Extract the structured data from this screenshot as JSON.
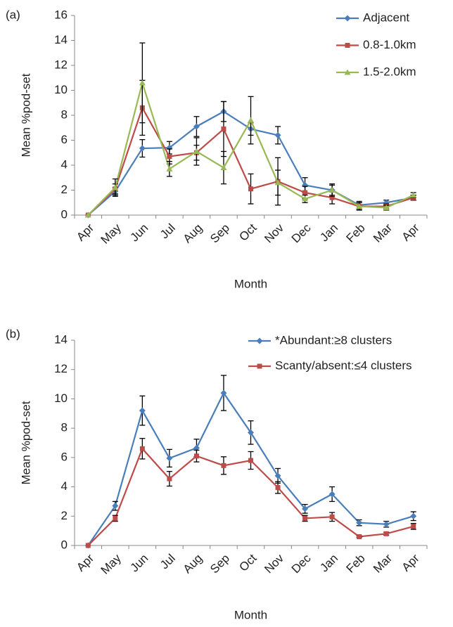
{
  "chart_data": [
    {
      "type": "line",
      "panel_label": "(a)",
      "y_label": "Mean %pod-set",
      "x_label": "Month",
      "categories": [
        "Apr",
        "May",
        "Jun",
        "Jul",
        "Aug",
        "Sep",
        "Oct",
        "Nov",
        "Dec",
        "Jan",
        "Feb",
        "Mar",
        "Apr"
      ],
      "ylim": [
        0,
        16
      ],
      "yticks": [
        0,
        2,
        4,
        6,
        8,
        10,
        12,
        14,
        16
      ],
      "series": [
        {
          "name": "Adjacent",
          "color": "#4a7ebb",
          "marker": "diamond",
          "values": [
            0,
            1.9,
            5.35,
            5.4,
            7.1,
            8.3,
            6.9,
            6.4,
            2.4,
            2.0,
            0.8,
            1.0,
            1.4
          ],
          "errors": [
            0,
            0.3,
            0.7,
            0.5,
            0.8,
            0.8,
            0.5,
            0.7,
            0.6,
            0.4,
            0.3,
            0.2,
            0.2
          ]
        },
        {
          "name": "0.8-1.0km",
          "color": "#be4b48",
          "marker": "square",
          "values": [
            0,
            2.1,
            8.6,
            4.7,
            5.0,
            6.9,
            2.1,
            2.7,
            1.8,
            1.4,
            0.7,
            0.7,
            1.4
          ],
          "errors": [
            0,
            0.4,
            2.2,
            0.6,
            0.6,
            2.2,
            1.2,
            1.9,
            0.5,
            0.5,
            0.3,
            0.2,
            0.2
          ]
        },
        {
          "name": "1.5-2.0km",
          "color": "#98b954",
          "marker": "triangle",
          "values": [
            0,
            2.2,
            10.6,
            3.7,
            5.1,
            3.8,
            7.6,
            2.6,
            1.3,
            2.0,
            0.7,
            0.6,
            1.6
          ],
          "errors": [
            0,
            0.7,
            3.2,
            0.6,
            1.1,
            1.3,
            1.9,
            1.0,
            0.3,
            0.5,
            0.3,
            0.2,
            0.2
          ]
        }
      ]
    },
    {
      "type": "line",
      "panel_label": "(b)",
      "y_label": "Mean %pod-set",
      "x_label": "Month",
      "categories": [
        "Apr",
        "May",
        "Jun",
        "Jul",
        "Aug",
        "Sep",
        "Oct",
        "Nov",
        "Dec",
        "Jan",
        "Feb",
        "Mar",
        "Apr"
      ],
      "ylim": [
        0,
        14
      ],
      "yticks": [
        0,
        2,
        4,
        6,
        8,
        10,
        12,
        14
      ],
      "series": [
        {
          "name": "*Abundant:≥8 clusters",
          "color": "#4a7ebb",
          "marker": "diamond",
          "values": [
            0,
            2.7,
            9.2,
            5.95,
            6.65,
            10.4,
            7.7,
            4.75,
            2.5,
            3.5,
            1.55,
            1.45,
            2.0
          ],
          "errors": [
            0,
            0.3,
            1.0,
            0.6,
            0.6,
            1.2,
            0.8,
            0.5,
            0.3,
            0.5,
            0.2,
            0.2,
            0.3
          ]
        },
        {
          "name": "Scanty/absent:≤4 clusters",
          "color": "#be4b48",
          "marker": "square",
          "values": [
            0,
            1.85,
            6.6,
            4.55,
            6.1,
            5.45,
            5.8,
            3.95,
            1.85,
            1.95,
            0.6,
            0.8,
            1.3
          ],
          "errors": [
            0,
            0.2,
            0.7,
            0.5,
            0.4,
            0.6,
            0.6,
            0.4,
            0.2,
            0.3,
            0.05,
            0.1,
            0.2
          ]
        }
      ]
    }
  ]
}
